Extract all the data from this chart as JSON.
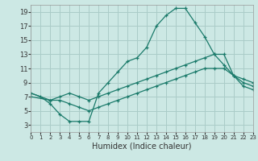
{
  "xlabel": "Humidex (Indice chaleur)",
  "background_color": "#cce8e4",
  "grid_color": "#aaccc8",
  "line_color": "#1a7a6a",
  "xlim": [
    0,
    23
  ],
  "ylim": [
    2,
    20
  ],
  "xticks": [
    0,
    1,
    2,
    3,
    4,
    5,
    6,
    7,
    8,
    9,
    10,
    11,
    12,
    13,
    14,
    15,
    16,
    17,
    18,
    19,
    20,
    21,
    22,
    23
  ],
  "yticks": [
    3,
    5,
    7,
    9,
    11,
    13,
    15,
    17,
    19
  ],
  "line1_x": [
    0,
    1,
    2,
    3,
    4,
    5,
    6,
    7,
    8,
    9,
    10,
    11,
    12,
    13,
    14,
    15,
    16,
    17,
    18,
    19,
    20,
    21,
    22,
    23
  ],
  "line1_y": [
    7.5,
    7.0,
    6.0,
    4.5,
    3.5,
    3.5,
    3.5,
    7.5,
    9.0,
    10.5,
    12.0,
    12.5,
    14.0,
    17.0,
    18.5,
    19.5,
    19.5,
    17.5,
    15.5,
    13.0,
    11.5,
    10.0,
    9.0,
    8.5
  ],
  "line2_x": [
    0,
    2,
    3,
    4,
    5,
    6,
    7,
    8,
    9,
    10,
    11,
    12,
    13,
    14,
    15,
    16,
    17,
    18,
    19,
    20,
    21,
    22,
    23
  ],
  "line2_y": [
    7.5,
    6.5,
    7.0,
    7.5,
    7.0,
    6.5,
    7.0,
    7.5,
    8.0,
    8.5,
    9.0,
    9.5,
    10.0,
    10.5,
    11.0,
    11.5,
    12.0,
    12.5,
    13.0,
    13.0,
    10.0,
    9.5,
    9.0
  ],
  "line3_x": [
    0,
    2,
    3,
    4,
    5,
    6,
    7,
    8,
    9,
    10,
    11,
    12,
    13,
    14,
    15,
    16,
    17,
    18,
    19,
    20,
    21,
    22,
    23
  ],
  "line3_y": [
    7.0,
    6.5,
    6.5,
    6.0,
    5.5,
    5.0,
    5.5,
    6.0,
    6.5,
    7.0,
    7.5,
    8.0,
    8.5,
    9.0,
    9.5,
    10.0,
    10.5,
    11.0,
    11.0,
    11.0,
    10.0,
    8.5,
    8.0
  ]
}
